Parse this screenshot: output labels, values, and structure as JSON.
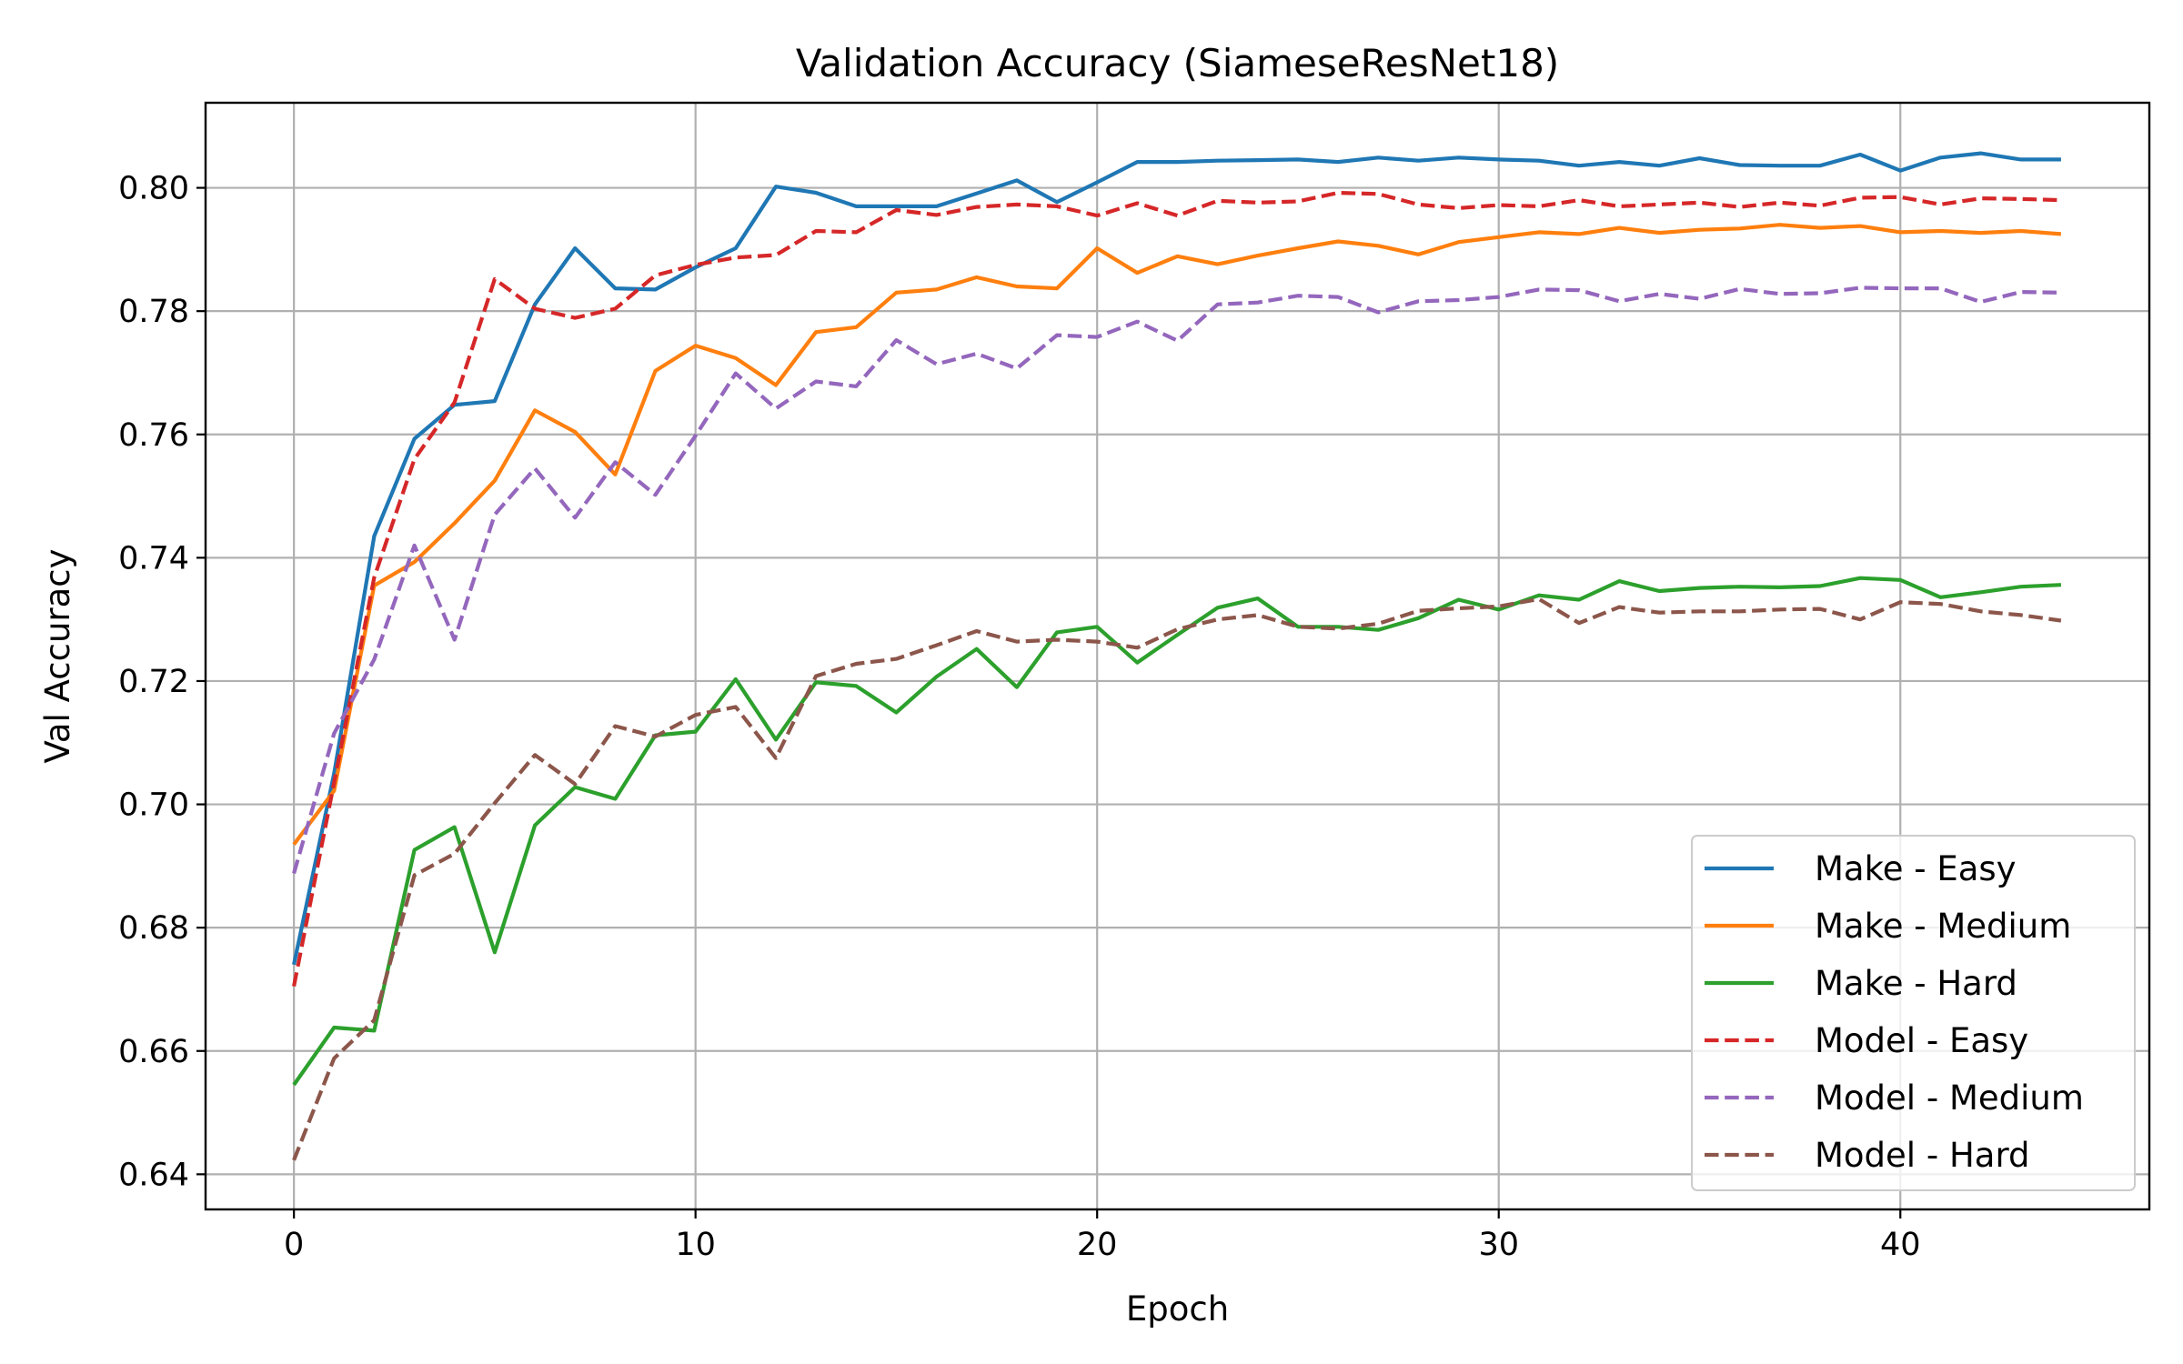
{
  "chart_data": {
    "type": "line",
    "title": "Validation Accuracy (SiameseResNet18)",
    "xlabel": "Epoch",
    "ylabel": "Val Accuracy",
    "xlim": [
      -2.2,
      46.2
    ],
    "ylim": [
      0.6343,
      0.8138
    ],
    "xticks": [
      0,
      10,
      20,
      30,
      40
    ],
    "yticks": [
      0.64,
      0.66,
      0.68,
      0.7,
      0.72,
      0.74,
      0.76,
      0.78,
      0.8
    ],
    "ytick_labels": [
      "0.64",
      "0.66",
      "0.68",
      "0.70",
      "0.72",
      "0.74",
      "0.76",
      "0.78",
      "0.80"
    ],
    "grid": true,
    "legend_position": "lower-right",
    "x": [
      0,
      1,
      2,
      3,
      4,
      5,
      6,
      7,
      8,
      9,
      10,
      11,
      12,
      13,
      14,
      15,
      16,
      17,
      18,
      19,
      20,
      21,
      22,
      23,
      24,
      25,
      26,
      27,
      28,
      29,
      30,
      31,
      32,
      33,
      34,
      35,
      36,
      37,
      38,
      39,
      40,
      41,
      42,
      43,
      44
    ],
    "series": [
      {
        "name": "Make - Easy",
        "color": "#1f77b4",
        "dash": "solid",
        "values": [
          0.674,
          0.705,
          0.7435,
          0.7593,
          0.7648,
          0.7654,
          0.7811,
          0.7902,
          0.7837,
          0.7835,
          0.7871,
          0.7902,
          0.8002,
          0.7992,
          0.797,
          0.797,
          0.797,
          0.7991,
          0.8012,
          0.7977,
          0.8009,
          0.8042,
          0.8042,
          0.8044,
          0.8045,
          0.8046,
          0.8042,
          0.8049,
          0.8044,
          0.8049,
          0.8046,
          0.8044,
          0.8036,
          0.8042,
          0.8036,
          0.8048,
          0.8037,
          0.8036,
          0.8036,
          0.8054,
          0.8028,
          0.8049,
          0.8056,
          0.8046,
          0.8046
        ]
      },
      {
        "name": "Make - Medium",
        "color": "#ff7f0e",
        "dash": "solid",
        "values": [
          0.6935,
          0.7022,
          0.7355,
          0.7393,
          0.7456,
          0.7525,
          0.7639,
          0.7604,
          0.7535,
          0.7703,
          0.7744,
          0.7724,
          0.768,
          0.7766,
          0.7774,
          0.783,
          0.7835,
          0.7855,
          0.784,
          0.7837,
          0.7902,
          0.7862,
          0.7889,
          0.7876,
          0.789,
          0.7902,
          0.7913,
          0.7906,
          0.7892,
          0.7912,
          0.792,
          0.7928,
          0.7925,
          0.7935,
          0.7927,
          0.7932,
          0.7934,
          0.794,
          0.7935,
          0.7938,
          0.7928,
          0.793,
          0.7927,
          0.793,
          0.7925
        ]
      },
      {
        "name": "Make - Hard",
        "color": "#2ca02c",
        "dash": "solid",
        "values": [
          0.6545,
          0.6638,
          0.6633,
          0.6926,
          0.6963,
          0.676,
          0.6966,
          0.7028,
          0.7009,
          0.7112,
          0.7118,
          0.7203,
          0.7105,
          0.7198,
          0.7192,
          0.7149,
          0.7207,
          0.7252,
          0.719,
          0.7279,
          0.7288,
          0.723,
          0.7275,
          0.7319,
          0.7334,
          0.7288,
          0.7288,
          0.7283,
          0.7302,
          0.7332,
          0.7316,
          0.7339,
          0.7332,
          0.7362,
          0.7346,
          0.7351,
          0.7353,
          0.7352,
          0.7354,
          0.7367,
          0.7364,
          0.7336,
          0.7344,
          0.7353,
          0.7356
        ]
      },
      {
        "name": "Model - Easy",
        "color": "#d62728",
        "dash": "dashed",
        "values": [
          0.6705,
          0.7035,
          0.7368,
          0.756,
          0.7652,
          0.7852,
          0.7804,
          0.7789,
          0.7804,
          0.7858,
          0.7875,
          0.7887,
          0.7891,
          0.793,
          0.7928,
          0.7964,
          0.7956,
          0.7969,
          0.7973,
          0.797,
          0.7955,
          0.7975,
          0.7955,
          0.7979,
          0.7976,
          0.7978,
          0.7992,
          0.799,
          0.7973,
          0.7967,
          0.7972,
          0.797,
          0.798,
          0.797,
          0.7973,
          0.7976,
          0.7969,
          0.7976,
          0.7971,
          0.7984,
          0.7985,
          0.7973,
          0.7983,
          0.7982,
          0.798
        ]
      },
      {
        "name": "Model - Medium",
        "color": "#9467bd",
        "dash": "dashed",
        "values": [
          0.6888,
          0.7115,
          0.7235,
          0.742,
          0.7267,
          0.747,
          0.7545,
          0.7465,
          0.7555,
          0.7502,
          0.7598,
          0.7699,
          0.7642,
          0.7686,
          0.7678,
          0.7753,
          0.7714,
          0.7731,
          0.7707,
          0.7761,
          0.7758,
          0.7783,
          0.7752,
          0.7811,
          0.7814,
          0.7825,
          0.7823,
          0.7798,
          0.7816,
          0.7818,
          0.7823,
          0.7835,
          0.7834,
          0.7816,
          0.7828,
          0.782,
          0.7836,
          0.7828,
          0.7829,
          0.7838,
          0.7837,
          0.7837,
          0.7815,
          0.7831,
          0.783
        ]
      },
      {
        "name": "Model - Hard",
        "color": "#8c564b",
        "dash": "dashed",
        "values": [
          0.6423,
          0.6588,
          0.665,
          0.6885,
          0.692,
          0.7002,
          0.708,
          0.7033,
          0.7127,
          0.711,
          0.7145,
          0.7158,
          0.7075,
          0.7208,
          0.7228,
          0.7236,
          0.7258,
          0.7281,
          0.7264,
          0.7267,
          0.7264,
          0.7254,
          0.7284,
          0.73,
          0.7307,
          0.7288,
          0.7285,
          0.7293,
          0.7314,
          0.7318,
          0.7321,
          0.7333,
          0.7294,
          0.732,
          0.7311,
          0.7313,
          0.7313,
          0.7316,
          0.7317,
          0.73,
          0.7328,
          0.7325,
          0.7313,
          0.7307,
          0.7298
        ]
      }
    ]
  }
}
